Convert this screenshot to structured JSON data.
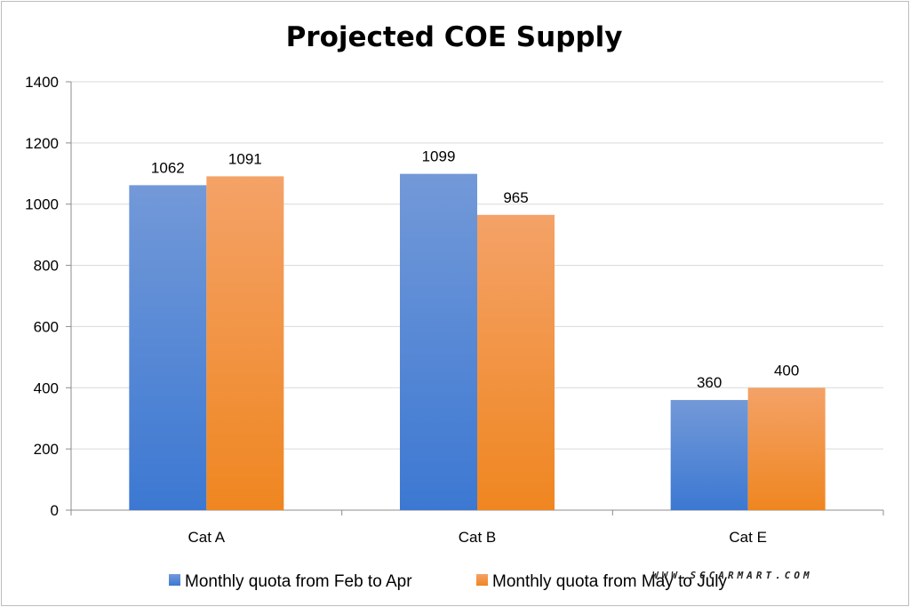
{
  "chart_data": {
    "type": "bar",
    "title": "Projected COE Supply",
    "categories": [
      "Cat A",
      "Cat B",
      "Cat E"
    ],
    "series": [
      {
        "name": "Monthly quota from Feb to Apr",
        "values": [
          1062,
          1099,
          360
        ],
        "color": "#4a7fd0"
      },
      {
        "name": "Monthly quota from May to July",
        "values": [
          1091,
          965,
          400
        ],
        "color": "#f08a2c"
      }
    ],
    "ylim": [
      0,
      1400
    ],
    "yticks": [
      "0",
      "200",
      "400",
      "600",
      "800",
      "1000",
      "1200",
      "1400"
    ],
    "xlabel": "",
    "ylabel": "",
    "grid": true,
    "legend": "bottom"
  },
  "watermark": "WWW.SGCARMART.COM"
}
